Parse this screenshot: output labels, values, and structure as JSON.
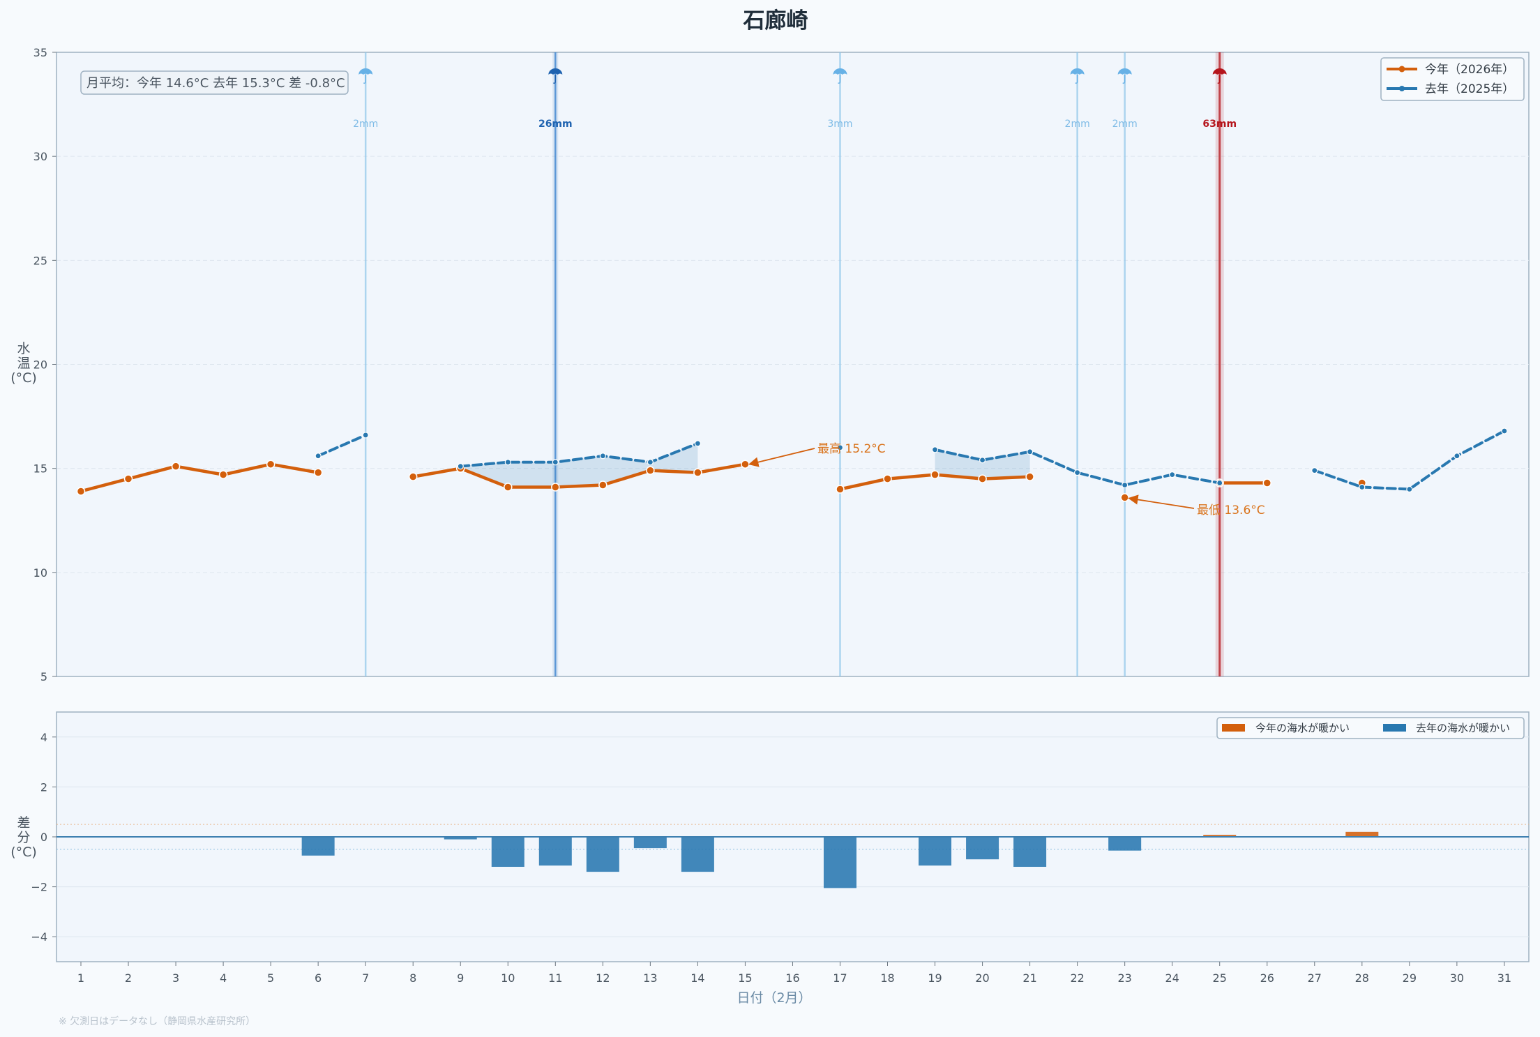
{
  "chart_data": [
    {
      "type": "line",
      "title": "石廊崎",
      "ylabel": "水温 (°C)",
      "ylim": [
        5,
        35
      ],
      "yticks": [
        5,
        10,
        15,
        20,
        25,
        30,
        35
      ],
      "x": [
        1,
        2,
        3,
        4,
        5,
        6,
        7,
        8,
        9,
        10,
        11,
        12,
        13,
        14,
        15,
        16,
        17,
        18,
        19,
        20,
        21,
        22,
        23,
        24,
        25,
        26,
        27,
        28,
        29,
        30,
        31
      ],
      "xlabel": "日付（2月）",
      "series": [
        {
          "name": "今年（2026年）",
          "color": "#d35f0c",
          "style": "solid",
          "values": [
            13.9,
            14.5,
            15.1,
            14.7,
            15.2,
            14.8,
            null,
            14.6,
            15.0,
            14.1,
            14.1,
            14.2,
            14.9,
            14.8,
            15.2,
            null,
            14.0,
            14.5,
            14.7,
            14.5,
            14.6,
            null,
            13.6,
            null,
            14.3,
            14.3,
            null,
            14.3,
            null,
            null,
            null
          ]
        },
        {
          "name": "去年（2025年）",
          "color": "#2878b0",
          "style": "dashed",
          "values": [
            null,
            null,
            null,
            null,
            null,
            15.6,
            16.6,
            null,
            15.1,
            15.3,
            15.3,
            15.6,
            15.3,
            16.2,
            null,
            null,
            16.0,
            null,
            15.9,
            15.4,
            15.8,
            14.8,
            14.2,
            14.7,
            14.3,
            null,
            14.9,
            14.1,
            14.0,
            15.6,
            16.8
          ]
        }
      ],
      "rain": [
        {
          "day": 7,
          "amount": "2mm",
          "color": "#67b1e6"
        },
        {
          "day": 11,
          "amount": "26mm",
          "color": "#1f63b0"
        },
        {
          "day": 17,
          "amount": "3mm",
          "color": "#67b1e6"
        },
        {
          "day": 22,
          "amount": "2mm",
          "color": "#67b1e6"
        },
        {
          "day": 23,
          "amount": "2mm",
          "color": "#67b1e6"
        },
        {
          "day": 25,
          "amount": "63mm",
          "color": "#b5151c"
        }
      ],
      "annotations": [
        {
          "day": 15,
          "value": 15.2,
          "text": "最高 15.2°C"
        },
        {
          "day": 23,
          "value": 13.6,
          "text": "最低 13.6°C"
        }
      ],
      "summary": "月平均：今年 14.6°C  去年 15.3°C  差 -0.8°C",
      "legend_position": "top-right",
      "grid": true
    },
    {
      "type": "bar",
      "ylabel": "差分 (°C)",
      "ylim": [
        -5,
        5
      ],
      "yticks": [
        -4,
        -2,
        0,
        2,
        4
      ],
      "x": [
        1,
        2,
        3,
        4,
        5,
        6,
        7,
        8,
        9,
        10,
        11,
        12,
        13,
        14,
        15,
        16,
        17,
        18,
        19,
        20,
        21,
        22,
        23,
        24,
        25,
        26,
        27,
        28,
        29,
        30,
        31
      ],
      "values": [
        null,
        null,
        null,
        null,
        null,
        -0.75,
        null,
        null,
        -0.1,
        -1.2,
        -1.15,
        -1.4,
        -0.45,
        -1.4,
        null,
        null,
        -2.05,
        null,
        -1.15,
        -0.9,
        -1.2,
        null,
        -0.55,
        null,
        0.08,
        null,
        null,
        0.2,
        null,
        null,
        null
      ],
      "positive_color": "#d35f0c",
      "negative_color": "#2878b0",
      "legend": [
        "今年の海水が暖かい",
        "去年の海水が暖かい"
      ],
      "legend_position": "top-right"
    }
  ],
  "footnote": "※ 欠測日はデータなし（静岡県水産研究所）"
}
